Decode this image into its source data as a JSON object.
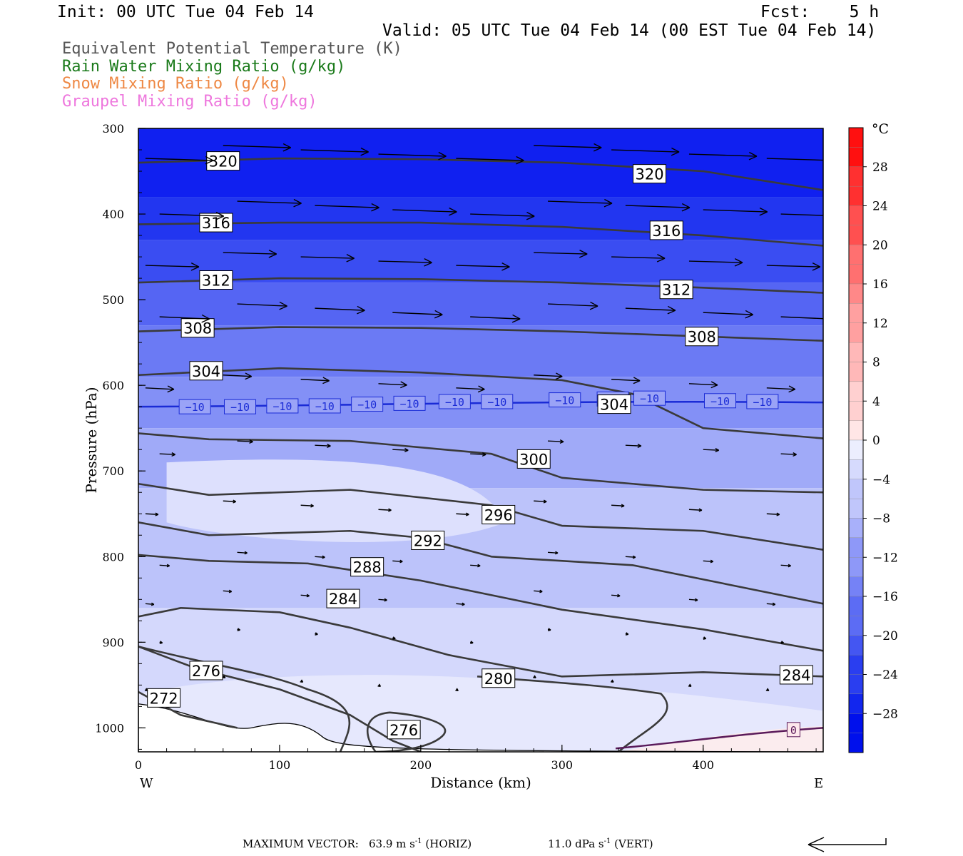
{
  "header": {
    "init": "Init: 00 UTC Tue 04 Feb 14",
    "fcst": "Fcst:    5 h",
    "valid": "Valid: 05 UTC Tue 04 Feb 14 (00 EST Tue 04 Feb 14)"
  },
  "legend": [
    {
      "label": "Equivalent Potential Temperature (K)",
      "color": "#555555"
    },
    {
      "label": "Rain Water Mixing Ratio (g/kg)",
      "color": "#1a7a1a"
    },
    {
      "label": "Snow Mixing Ratio (g/kg)",
      "color": "#ee8844"
    },
    {
      "label": "Graupel Mixing Ratio (g/kg)",
      "color": "#ee77dd"
    }
  ],
  "footer": {
    "max_vector_label": "MAXIMUM VECTOR:",
    "horiz": "63.9 m s",
    "horiz_suffix": "(HORIZ)",
    "vert": "11.0 dPa s",
    "vert_suffix": "(VERT)",
    "exp": "-1"
  },
  "colorbar": {
    "unit": "°C",
    "ticks": [
      "28",
      "24",
      "20",
      "16",
      "12",
      "8",
      "4",
      "0",
      "−4",
      "−8",
      "−12",
      "−16",
      "−20",
      "−24",
      "−28"
    ],
    "tick_values": [
      28,
      24,
      20,
      16,
      12,
      8,
      4,
      0,
      -4,
      -8,
      -12,
      -16,
      -20,
      -24,
      -28
    ],
    "range": [
      -32,
      32
    ]
  },
  "chart_data": {
    "type": "cross-section contour",
    "xlabel": "Distance (km)",
    "ylabel": "Pressure (hPa)",
    "x_ticks": [
      0,
      100,
      200,
      300,
      400
    ],
    "y_ticks": [
      300,
      400,
      500,
      600,
      700,
      800,
      900,
      1000
    ],
    "xlim": [
      0,
      485
    ],
    "ylim": [
      1028,
      300
    ],
    "x_end_labels": {
      "left": "W",
      "right": "E"
    },
    "theta_e_contours": [
      {
        "value": 320,
        "label": "320",
        "points": [
          [
            0,
            340
          ],
          [
            100,
            335
          ],
          [
            200,
            336
          ],
          [
            300,
            340
          ],
          [
            400,
            350
          ],
          [
            485,
            372
          ]
        ]
      },
      {
        "value": 316,
        "label": "316",
        "points": [
          [
            0,
            412
          ],
          [
            100,
            410
          ],
          [
            200,
            410
          ],
          [
            300,
            415
          ],
          [
            400,
            425
          ],
          [
            485,
            437
          ]
        ]
      },
      {
        "value": 312,
        "label": "312",
        "points": [
          [
            0,
            480
          ],
          [
            100,
            475
          ],
          [
            200,
            476
          ],
          [
            300,
            480
          ],
          [
            400,
            486
          ],
          [
            485,
            492
          ]
        ]
      },
      {
        "value": 308,
        "label": "308",
        "points": [
          [
            0,
            537
          ],
          [
            100,
            532
          ],
          [
            200,
            533
          ],
          [
            300,
            537
          ],
          [
            400,
            543
          ],
          [
            485,
            548
          ]
        ]
      },
      {
        "value": 304,
        "label": "304",
        "points": [
          [
            0,
            588
          ],
          [
            100,
            580
          ],
          [
            200,
            585
          ],
          [
            300,
            594
          ],
          [
            350,
            610
          ],
          [
            400,
            650
          ],
          [
            485,
            662
          ]
        ]
      },
      {
        "value": 300,
        "label": "300",
        "points": [
          [
            0,
            656
          ],
          [
            50,
            663
          ],
          [
            150,
            665
          ],
          [
            250,
            680
          ],
          [
            300,
            708
          ],
          [
            400,
            722
          ],
          [
            485,
            725
          ]
        ]
      },
      {
        "value": 296,
        "label": "296",
        "points": [
          [
            0,
            715
          ],
          [
            50,
            728
          ],
          [
            150,
            722
          ],
          [
            250,
            740
          ],
          [
            300,
            764
          ],
          [
            400,
            770
          ],
          [
            485,
            792
          ]
        ]
      },
      {
        "value": 292,
        "label": "292",
        "points": [
          [
            0,
            760
          ],
          [
            50,
            775
          ],
          [
            150,
            770
          ],
          [
            200,
            778
          ],
          [
            250,
            800
          ],
          [
            350,
            810
          ],
          [
            485,
            855
          ]
        ]
      },
      {
        "value": 288,
        "label": "288",
        "points": [
          [
            0,
            798
          ],
          [
            50,
            805
          ],
          [
            120,
            808
          ],
          [
            200,
            828
          ],
          [
            300,
            862
          ],
          [
            400,
            885
          ],
          [
            485,
            910
          ]
        ]
      },
      {
        "value": 284,
        "label": "284",
        "points": [
          [
            0,
            870
          ],
          [
            30,
            860
          ],
          [
            100,
            865
          ],
          [
            150,
            883
          ],
          [
            220,
            915
          ],
          [
            300,
            940
          ],
          [
            400,
            935
          ],
          [
            485,
            940
          ]
        ]
      },
      {
        "value": 280,
        "label": "280",
        "points": [
          [
            0,
            905
          ],
          [
            40,
            930
          ],
          [
            100,
            955
          ],
          [
            150,
            985
          ],
          [
            180,
            1015
          ],
          [
            200,
            1028
          ]
        ]
      },
      {
        "value": 276,
        "label": "276",
        "points": [
          [
            0,
            958
          ],
          [
            30,
            985
          ],
          [
            70,
            1000
          ]
        ]
      },
      {
        "value": 272,
        "label": "272",
        "points": []
      }
    ],
    "temperature_contour": {
      "value": -10,
      "label": "-10",
      "pressure_hpa": 622
    },
    "freezing_contour_label": "0"
  }
}
